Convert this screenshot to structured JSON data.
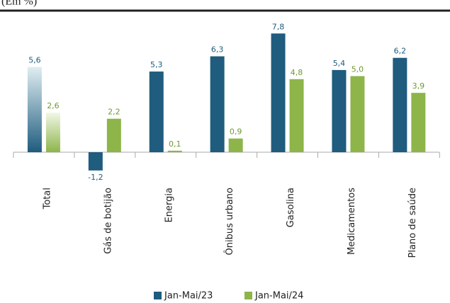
{
  "chart_data": {
    "type": "bar",
    "title": "(Em %)",
    "categories": [
      "Total",
      "Gás de botijão",
      "Energia",
      "Ônibus urbano",
      "Gasolina",
      "Medicamentos",
      "Plano de saúde"
    ],
    "series": [
      {
        "name": "Jan-Mai/23",
        "color": "#1f5c7e",
        "values": [
          5.6,
          -1.2,
          5.3,
          6.3,
          7.8,
          5.4,
          6.2
        ],
        "value_labels": [
          "5,6",
          "-1,2",
          "5,3",
          "6,3",
          "7,8",
          "5,4",
          "6,2"
        ]
      },
      {
        "name": "Jan-Mai/24",
        "color": "#8db54a",
        "values": [
          2.6,
          2.2,
          0.1,
          0.9,
          4.8,
          5.0,
          3.9
        ],
        "value_labels": [
          "2,6",
          "2,2",
          "0,1",
          "0,9",
          "4,8",
          "5,0",
          "3,9"
        ]
      }
    ]
  }
}
